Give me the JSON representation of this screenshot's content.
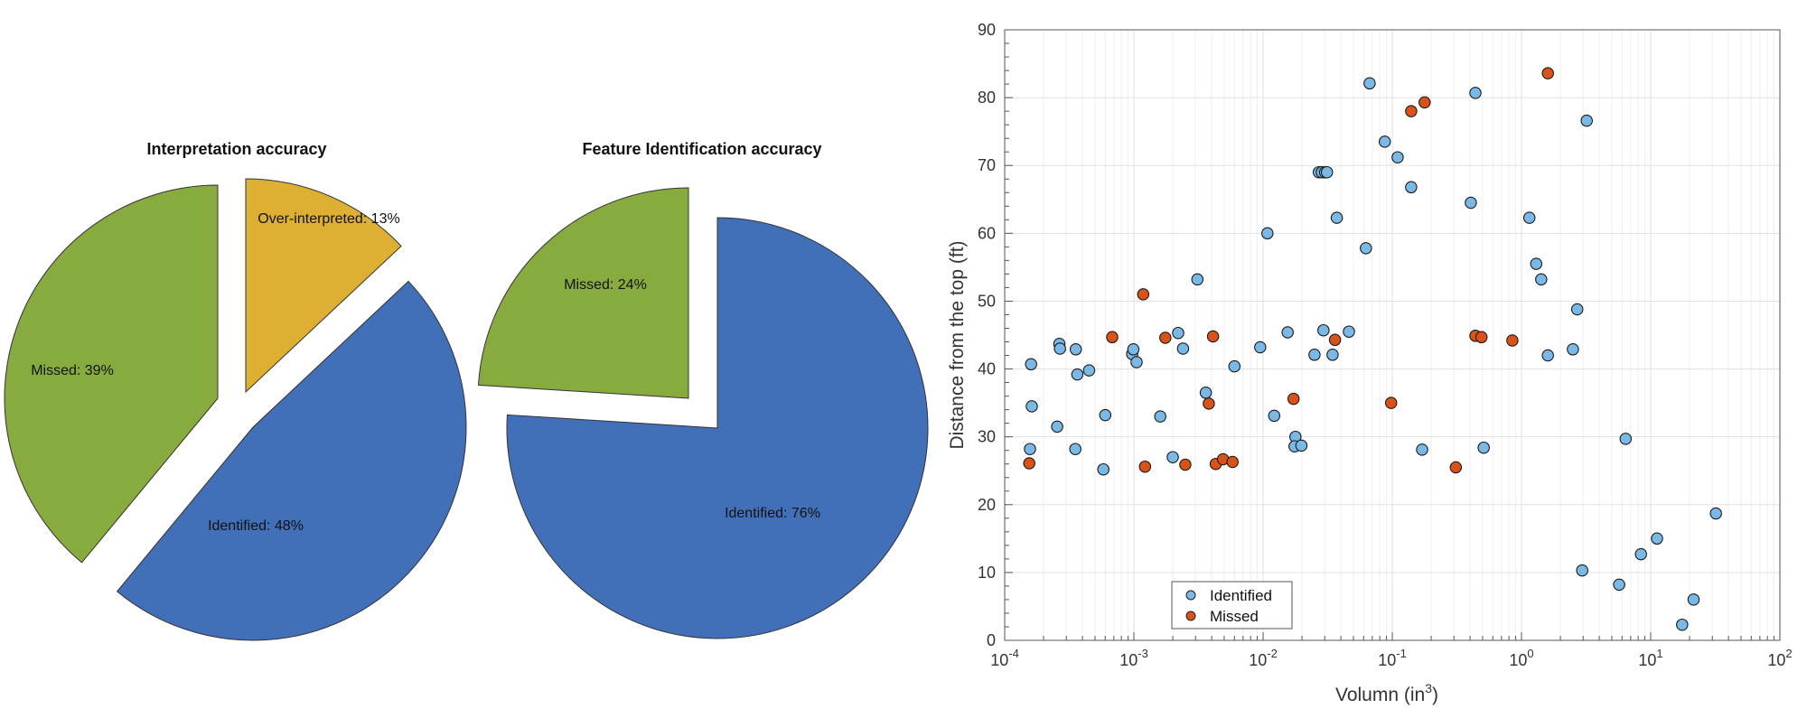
{
  "chart_data": [
    {
      "type": "pie",
      "title": "Interpretation accuracy",
      "slices": [
        {
          "label": "Identified: 48%",
          "value": 48,
          "exploded": true
        },
        {
          "label": "Missed: 39%",
          "value": 39,
          "exploded": true
        },
        {
          "label": "Over-interpreted: 13%",
          "value": 13,
          "exploded": true
        }
      ],
      "colors": {
        "Identified": "#4270b8",
        "Missed": "#88ab40",
        "Over-interpreted": "#ddb033"
      }
    },
    {
      "type": "pie",
      "title": "Feature Identification accuracy",
      "slices": [
        {
          "label": "Identified: 76%",
          "value": 76,
          "exploded": true
        },
        {
          "label": "Missed: 24%",
          "value": 24,
          "exploded": true
        }
      ],
      "colors": {
        "Identified": "#4270b8",
        "Missed": "#88ab40"
      }
    },
    {
      "type": "scatter",
      "xlabel": "Volumn (in",
      "xlabel_sup": "3",
      "xlabel_end": ")",
      "ylabel": "Distance from the top (ft)",
      "xscale": "log",
      "xlim": [
        0.0001,
        100
      ],
      "ylim": [
        0,
        90
      ],
      "xticks": [
        {
          "base": "10",
          "exp": "-4"
        },
        {
          "base": "10",
          "exp": "-3"
        },
        {
          "base": "10",
          "exp": "-2"
        },
        {
          "base": "10",
          "exp": "-1"
        },
        {
          "base": "10",
          "exp": "0"
        },
        {
          "base": "10",
          "exp": "1"
        },
        {
          "base": "10",
          "exp": "2"
        }
      ],
      "yticks": [
        "0",
        "10",
        "20",
        "30",
        "40",
        "50",
        "60",
        "70",
        "80",
        "90"
      ],
      "grid": true,
      "legend": "bottom-left",
      "series": [
        {
          "name": "Identified",
          "color": "#7ab8e6",
          "points": [
            [
              0.00016,
              40.7
            ],
            [
              0.000162,
              34.5
            ],
            [
              0.000157,
              28.2
            ],
            [
              0.000265,
              43.7
            ],
            [
              0.000268,
              43.0
            ],
            [
              0.000255,
              31.5
            ],
            [
              0.000355,
              42.9
            ],
            [
              0.000365,
              39.2
            ],
            [
              0.000352,
              28.2
            ],
            [
              0.00045,
              39.8
            ],
            [
              0.00058,
              25.2
            ],
            [
              0.0006,
              33.2
            ],
            [
              0.00097,
              42.2
            ],
            [
              0.00099,
              42.9
            ],
            [
              0.00105,
              41.0
            ],
            [
              0.0016,
              33.0
            ],
            [
              0.002,
              27.0
            ],
            [
              0.0022,
              45.3
            ],
            [
              0.0024,
              43.0
            ],
            [
              0.0031,
              53.2
            ],
            [
              0.0036,
              36.5
            ],
            [
              0.006,
              40.4
            ],
            [
              0.0095,
              43.2
            ],
            [
              0.0108,
              60.0
            ],
            [
              0.0122,
              33.1
            ],
            [
              0.0155,
              45.4
            ],
            [
              0.0178,
              30.0
            ],
            [
              0.0175,
              28.6
            ],
            [
              0.0198,
              28.7
            ],
            [
              0.025,
              42.1
            ],
            [
              0.027,
              69.0
            ],
            [
              0.0285,
              69.0
            ],
            [
              0.0293,
              45.7
            ],
            [
              0.0302,
              69.0
            ],
            [
              0.0312,
              69.0
            ],
            [
              0.0345,
              42.1
            ],
            [
              0.0372,
              62.3
            ],
            [
              0.0462,
              45.5
            ],
            [
              0.0625,
              57.8
            ],
            [
              0.0668,
              82.1
            ],
            [
              0.0875,
              73.5
            ],
            [
              0.11,
              71.2
            ],
            [
              0.14,
              66.8
            ],
            [
              0.17,
              28.1
            ],
            [
              0.405,
              64.5
            ],
            [
              0.44,
              80.7
            ],
            [
              0.51,
              28.4
            ],
            [
              1.15,
              62.3
            ],
            [
              1.3,
              55.5
            ],
            [
              1.42,
              53.2
            ],
            [
              1.6,
              42.0
            ],
            [
              2.5,
              42.9
            ],
            [
              2.7,
              48.8
            ],
            [
              2.95,
              10.3
            ],
            [
              3.2,
              76.6
            ],
            [
              5.7,
              8.2
            ],
            [
              6.4,
              29.7
            ],
            [
              8.4,
              12.7
            ],
            [
              11.2,
              15.0
            ],
            [
              17.5,
              2.3
            ],
            [
              21.5,
              6.0
            ],
            [
              32.0,
              18.7
            ]
          ]
        },
        {
          "name": "Missed",
          "color": "#d95319",
          "points": [
            [
              0.000155,
              26.1
            ],
            [
              0.00068,
              44.7
            ],
            [
              0.00118,
              51.0
            ],
            [
              0.00122,
              25.6
            ],
            [
              0.00175,
              44.6
            ],
            [
              0.0025,
              25.9
            ],
            [
              0.0038,
              34.9
            ],
            [
              0.0041,
              44.8
            ],
            [
              0.0043,
              26.0
            ],
            [
              0.0049,
              26.7
            ],
            [
              0.0058,
              26.3
            ],
            [
              0.0172,
              35.6
            ],
            [
              0.036,
              44.3
            ],
            [
              0.098,
              35.0
            ],
            [
              0.14,
              78.0
            ],
            [
              0.178,
              79.3
            ],
            [
              0.31,
              25.5
            ],
            [
              0.44,
              44.9
            ],
            [
              0.49,
              44.7
            ],
            [
              0.85,
              44.2
            ],
            [
              1.6,
              83.6
            ]
          ]
        }
      ]
    }
  ]
}
